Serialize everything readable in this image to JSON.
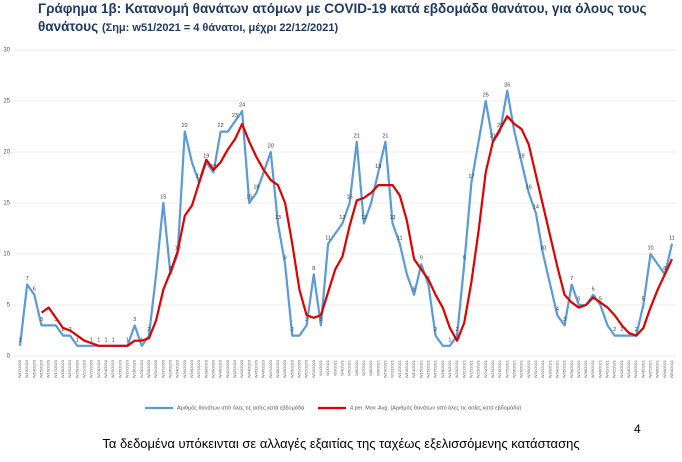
{
  "chart_data": {
    "type": "line",
    "title": "Γράφημα 1β: Κατανομή θανάτων ατόμων με COVID-19 κατά εβδομάδα θανάτου, για όλους τους θανάτους",
    "subtitle": "(Σημ: w51/2021 = 4 θάνατοι, μέχρι 22/12/2021)",
    "categories": [
      "W12/2020",
      "W13/2020",
      "W14/2020",
      "W15/2020",
      "W16/2020",
      "W17/2020",
      "W18/2020",
      "W19/2020",
      "W20/2020",
      "W21/2020",
      "W22/2020",
      "W23/2020",
      "W24/2020",
      "W25/2020",
      "W26/2020",
      "W27/2020",
      "W28/2020",
      "W29/2020",
      "W30/2020",
      "W31/2020",
      "W32/2020",
      "W33/2020",
      "W34/2020",
      "W35/2020",
      "W36/2020",
      "W37/2020",
      "W38/2020",
      "W39/2020",
      "W40/2020",
      "W41/2020",
      "W42/2020",
      "W43/2020",
      "W44/2020",
      "W45/2020",
      "W46/2020",
      "W47/2020",
      "W48/2020",
      "W49/2020",
      "W50/2020",
      "W51/2020",
      "W52/2020",
      "W53/2020",
      "W1/2021",
      "W2/2021",
      "W3/2021",
      "W4/2021",
      "W5/2021",
      "W6/2021",
      "W7/2021",
      "W8/2021",
      "W9/2021",
      "W10/2021",
      "W11/2021",
      "W12/2021",
      "W13/2021",
      "W14/2021",
      "W15/2021",
      "W16/2021",
      "W17/2021",
      "W18/2021",
      "W19/2021",
      "W20/2021",
      "W21/2021",
      "W22/2021",
      "W23/2021",
      "W24/2021",
      "W25/2021",
      "W26/2021",
      "W27/2021",
      "W28/2021",
      "W29/2021",
      "W30/2021",
      "W31/2021",
      "W32/2021",
      "W33/2021",
      "W34/2021",
      "W35/2021",
      "W36/2021",
      "W37/2021",
      "W38/2021",
      "W39/2021",
      "W40/2021",
      "W41/2021",
      "W42/2021",
      "W43/2021",
      "W44/2021",
      "W45/2021",
      "W46/2021",
      "W47/2021",
      "W48/2021",
      "W49/2021",
      "W50/2021"
    ],
    "series": [
      {
        "name": "Αριθμός θανάτων από όλες τις αιτίες κατά εβδομάδα",
        "color": "#5b9bd5",
        "values": [
          1,
          7,
          6,
          3,
          3,
          3,
          2,
          2,
          1,
          1,
          1,
          1,
          1,
          1,
          1,
          1,
          3,
          1,
          2,
          8,
          15,
          8,
          10,
          22,
          19,
          17,
          19,
          18,
          22,
          22,
          23,
          24,
          15,
          16,
          18,
          20,
          13,
          9,
          2,
          2,
          3,
          8,
          3,
          11,
          12,
          13,
          15,
          21,
          13,
          15,
          18,
          21,
          13,
          11,
          8,
          6,
          9,
          7,
          2,
          1,
          1,
          2,
          9,
          17,
          21,
          25,
          21,
          22,
          26,
          22,
          19,
          16,
          14,
          10,
          7,
          4,
          3,
          7,
          5,
          5,
          6,
          5,
          3,
          2,
          2,
          2,
          2,
          5,
          10,
          9,
          8,
          11
        ],
        "value_labels": [
          "1",
          "7",
          "6",
          "3",
          null,
          "3",
          "2",
          "2",
          "1",
          null,
          "1",
          "1",
          "1",
          "1",
          null,
          "1",
          "3",
          "1",
          "2",
          null,
          "15",
          "8",
          "10",
          "22",
          null,
          "17",
          "19",
          "18",
          "22",
          null,
          "23",
          "24",
          "15",
          "16",
          null,
          "20",
          "13",
          "9",
          "2",
          null,
          "3",
          "8",
          "3",
          "11",
          null,
          "13",
          "15",
          "21",
          "13",
          null,
          "18",
          "21",
          "13",
          "11",
          null,
          "6",
          "9",
          "7",
          "2",
          null,
          "1",
          "2",
          "9",
          "17",
          null,
          "25",
          "21",
          "22",
          "26",
          null,
          "19",
          "16",
          "14",
          "10",
          null,
          "4",
          "3",
          "7",
          "5",
          null,
          "6",
          "5",
          null,
          "2",
          "2",
          null,
          "2",
          "5",
          "10",
          null,
          "8",
          "11"
        ]
      },
      {
        "name": "4 per. Mov. Avg. (Αριθμός θανάτων από όλες τις αιτίες κατά εβδομάδα)",
        "color": "#e00000",
        "values": [
          null,
          null,
          null,
          4.25,
          4.75,
          3.75,
          2.75,
          2.5,
          2,
          1.5,
          1.25,
          1,
          1,
          1,
          1,
          1,
          1.5,
          1.5,
          1.75,
          3.5,
          6.5,
          8.25,
          10.25,
          13.75,
          14.75,
          17,
          19.25,
          18.25,
          19,
          20.25,
          21.25,
          22.75,
          21,
          19.5,
          18.25,
          17.25,
          16.75,
          15,
          11,
          6.5,
          4,
          3.75,
          4,
          6.25,
          8.5,
          9.75,
          12.75,
          15.25,
          15.5,
          16,
          16.75,
          16.75,
          16.75,
          15.75,
          13.25,
          9.5,
          8.5,
          7.5,
          6,
          4.75,
          2.75,
          1.5,
          3.25,
          7.25,
          12.25,
          18,
          21,
          22.25,
          23.5,
          22.75,
          22.25,
          20.75,
          17.75,
          14.75,
          11.75,
          8.75,
          6,
          5.25,
          4.75,
          5,
          5.75,
          5.25,
          4.75,
          4,
          3,
          2.25,
          2,
          2.75,
          4.75,
          6.5,
          8,
          9.5
        ]
      }
    ],
    "ylim": [
      0,
      30
    ],
    "yticks": [
      0,
      5,
      10,
      15,
      20,
      25,
      30
    ],
    "grid": true,
    "footer": "Τα δεδομένα υπόκεινται σε αλλαγές εξαιτίας της ταχέως εξελισσόμενης κατάστασης",
    "page_number": "4"
  }
}
